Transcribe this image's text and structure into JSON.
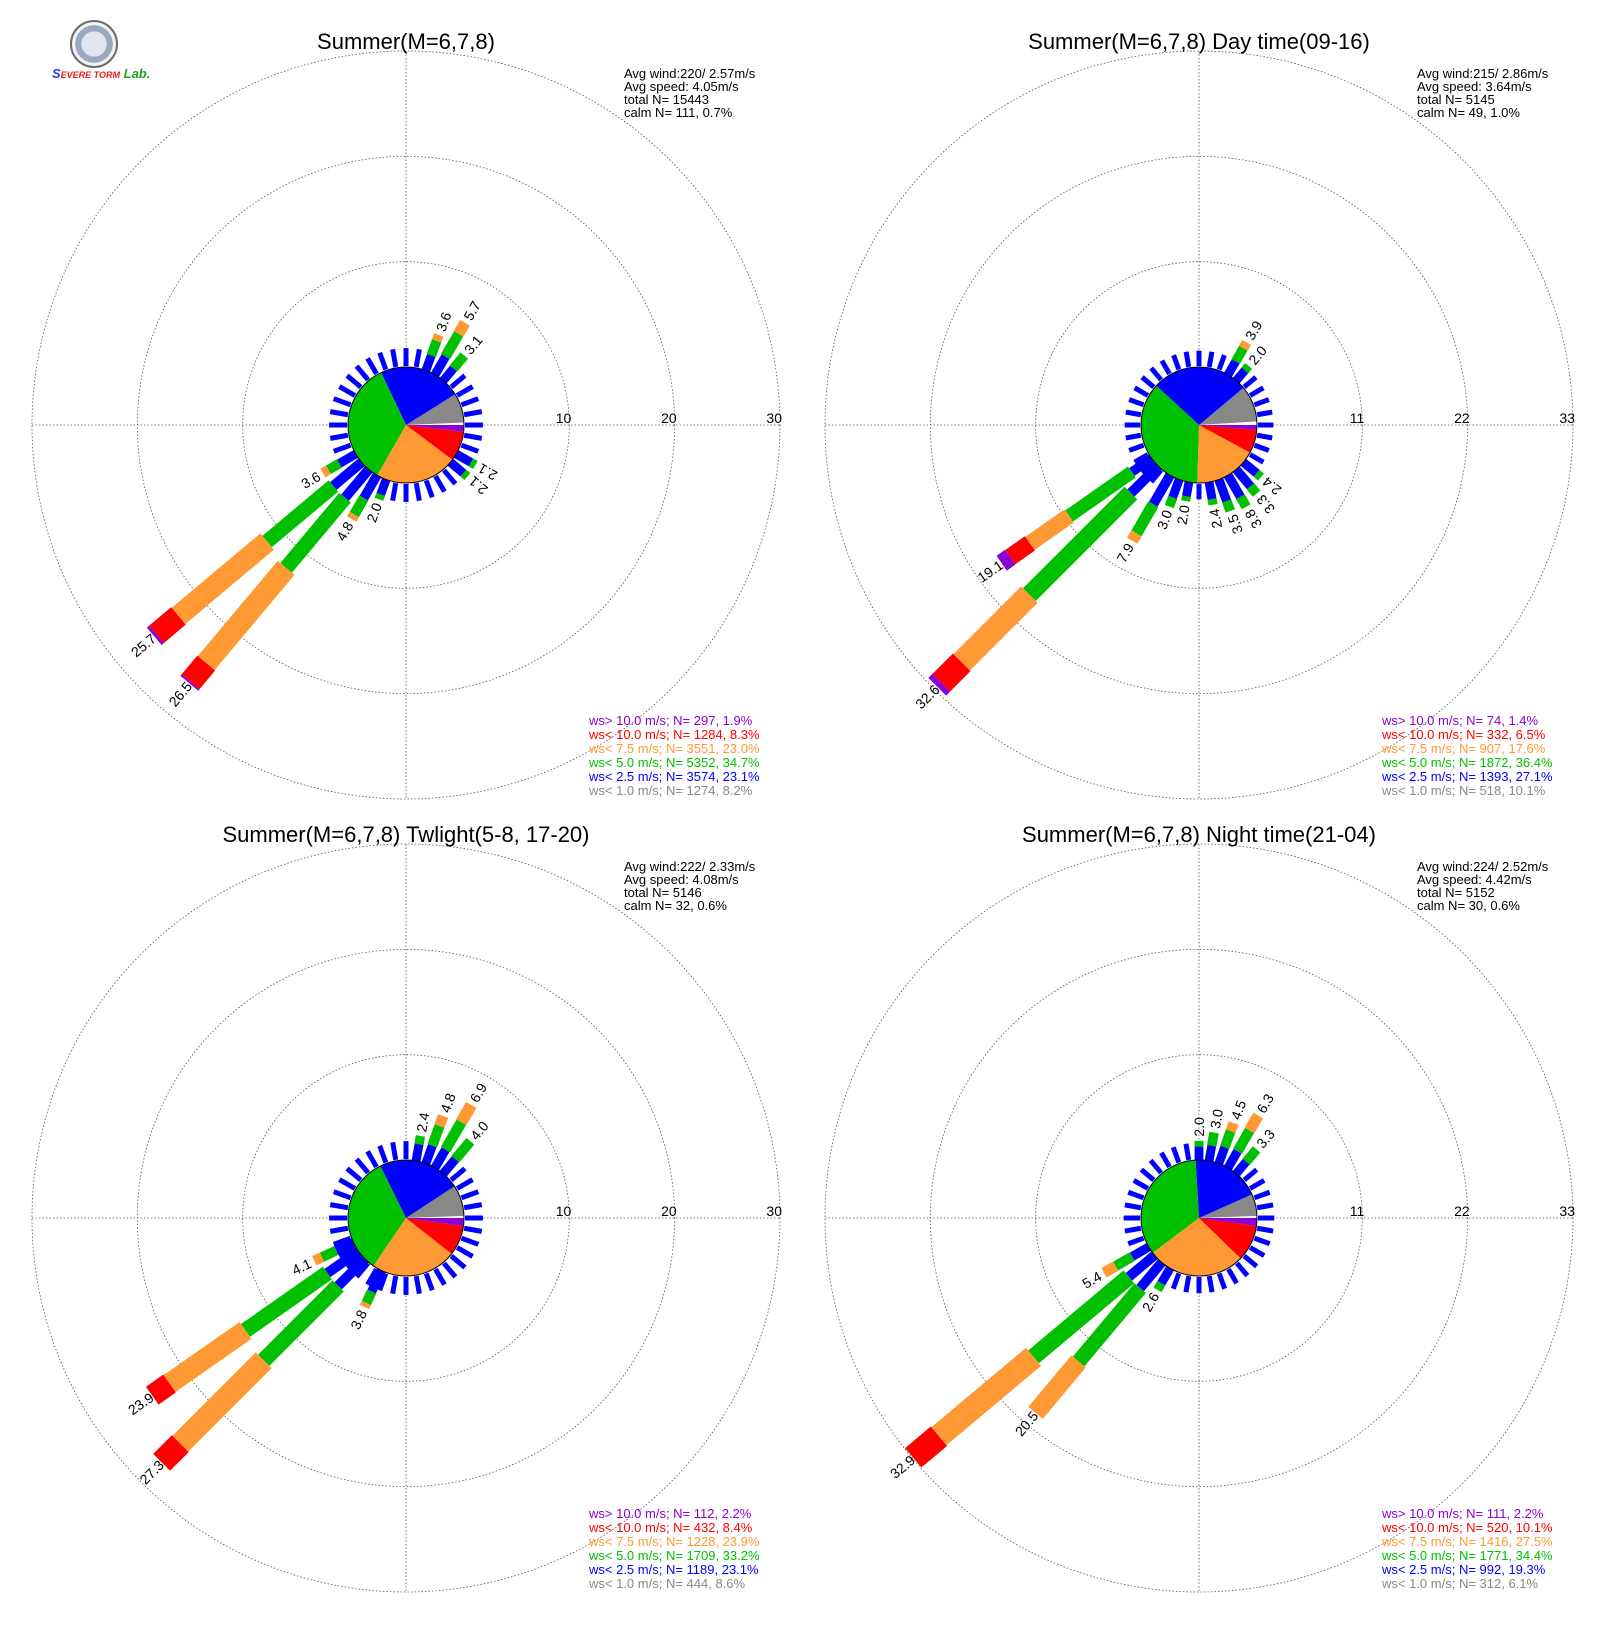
{
  "logo": {
    "text_1": "S",
    "text_2": "EVERE TORM",
    "text_3": "Lab."
  },
  "colors": {
    "calm": "#ffffff",
    "gt10": "#8b00d4",
    "lt10": "#ff0000",
    "lt7_5": "#ff9933",
    "lt5": "#00c000",
    "lt2_5": "#0000ff",
    "lt1": "#888888"
  },
  "chart_data": [
    {
      "type": "windrose",
      "title": "Summer(M=6,7,8)",
      "rings": [
        "10",
        "20",
        "30"
      ],
      "ring_max": 30,
      "stats": {
        "avg_wind": "Avg wind:220/ 2.57m/s",
        "avg_speed": "Avg speed: 4.05m/s",
        "total": "total N=      15443",
        "calm": "calm N=    111,   0.7%"
      },
      "legend": [
        {
          "key": "gt10",
          "text": "ws> 10.0 m/s; N=   297,  1.9%"
        },
        {
          "key": "lt10",
          "text": "ws< 10.0 m/s; N=  1284,  8.3%"
        },
        {
          "key": "lt7_5",
          "text": "ws<  7.5 m/s; N=  3551, 23.0%"
        },
        {
          "key": "lt5",
          "text": "ws<  5.0 m/s; N=  5352, 34.7%"
        },
        {
          "key": "lt2_5",
          "text": "ws<  2.5 m/s; N=  3574, 23.1%"
        },
        {
          "key": "lt1",
          "text": "ws<  1.0 m/s; N=  1274,  8.2%"
        }
      ],
      "pie": [
        0.7,
        8.2,
        23.1,
        34.7,
        23.0,
        8.3,
        1.9
      ],
      "bars": [
        {
          "dir": 220,
          "total": 26.5,
          "label": "26.5",
          "parts": [
            0,
            3.5,
            8.7,
            11.8,
            2.3
          ]
        },
        {
          "dir": 230,
          "total": 25.7,
          "label": "25.7",
          "parts": [
            0,
            3.5,
            8.2,
            11.0,
            2.7
          ]
        },
        {
          "dir": 210,
          "total": 4.8,
          "label": "4.8",
          "parts": [
            0,
            2.5,
            1.8,
            0.5,
            0
          ]
        },
        {
          "dir": 240,
          "total": 3.6,
          "label": "3.6",
          "parts": [
            0,
            1.8,
            1.2,
            0.6,
            0
          ]
        },
        {
          "dir": 200,
          "total": 2.0,
          "label": "2.0",
          "parts": [
            0,
            1.5,
            0.5,
            0,
            0
          ]
        },
        {
          "dir": 30,
          "total": 5.7,
          "label": "5.7",
          "parts": [
            0,
            2.0,
            2.5,
            1.2,
            0
          ]
        },
        {
          "dir": 20,
          "total": 3.6,
          "label": "3.6",
          "parts": [
            0,
            1.5,
            1.5,
            0.6,
            0
          ]
        },
        {
          "dir": 40,
          "total": 3.1,
          "label": "3.1",
          "parts": [
            0,
            1.5,
            1.6,
            0,
            0
          ]
        },
        {
          "dir": 120,
          "total": 2.1,
          "label": "2.1",
          "parts": [
            0,
            1.6,
            0.5,
            0,
            0
          ]
        },
        {
          "dir": 130,
          "total": 2.1,
          "label": "2.1",
          "parts": [
            0,
            1.6,
            0.5,
            0,
            0
          ]
        }
      ],
      "other_dirs_total": 1.7
    },
    {
      "type": "windrose",
      "title": "Summer(M=6,7,8) Day time(09-16)",
      "rings": [
        "11",
        "22",
        "33"
      ],
      "ring_max": 33,
      "stats": {
        "avg_wind": "Avg wind:215/ 2.86m/s",
        "avg_speed": "Avg speed: 3.64m/s",
        "total": "total N=       5145",
        "calm": "calm N=     49,   1.0%"
      },
      "legend": [
        {
          "key": "gt10",
          "text": "ws> 10.0 m/s; N=    74,  1.4%"
        },
        {
          "key": "lt10",
          "text": "ws< 10.0 m/s; N=   332,  6.5%"
        },
        {
          "key": "lt7_5",
          "text": "ws<  7.5 m/s; N=   907, 17.6%"
        },
        {
          "key": "lt5",
          "text": "ws<  5.0 m/s; N=  1872, 36.4%"
        },
        {
          "key": "lt2_5",
          "text": "ws<  2.5 m/s; N=  1393, 27.1%"
        },
        {
          "key": "lt1",
          "text": "ws<  1.0 m/s; N=   518, 10.1%"
        }
      ],
      "pie": [
        1.0,
        10.1,
        27.1,
        36.4,
        17.6,
        6.5,
        1.4
      ],
      "bars": [
        {
          "dir": 225,
          "total": 32.6,
          "label": "32.6",
          "parts": [
            0,
            4.0,
            15.0,
            10.0,
            3.0
          ]
        },
        {
          "dir": 235,
          "total": 19.1,
          "label": "19.1",
          "parts": [
            0,
            2.5,
            8.0,
            5.0,
            2.5
          ]
        },
        {
          "dir": 210,
          "total": 7.9,
          "label": "7.9",
          "parts": [
            0,
            3.5,
            3.5,
            0.9,
            0
          ]
        },
        {
          "dir": 200,
          "total": 3.0,
          "label": "3.0",
          "parts": [
            0,
            2.0,
            1.0,
            0,
            0
          ]
        },
        {
          "dir": 190,
          "total": 2.0,
          "label": "2.0",
          "parts": [
            0,
            1.5,
            0.5,
            0,
            0
          ]
        },
        {
          "dir": 170,
          "total": 2.4,
          "label": "2.4",
          "parts": [
            0,
            1.8,
            0.6,
            0,
            0
          ]
        },
        {
          "dir": 160,
          "total": 3.5,
          "label": "3.5",
          "parts": [
            0,
            2.4,
            1.1,
            0,
            0
          ]
        },
        {
          "dir": 150,
          "total": 3.8,
          "label": "3.8",
          "parts": [
            0,
            2.6,
            1.2,
            0,
            0
          ]
        },
        {
          "dir": 140,
          "total": 3.3,
          "label": "3.3",
          "parts": [
            0,
            2.3,
            1.0,
            0,
            0
          ]
        },
        {
          "dir": 130,
          "total": 2.4,
          "label": "2.4",
          "parts": [
            0,
            1.8,
            0.6,
            0,
            0
          ]
        },
        {
          "dir": 30,
          "total": 3.9,
          "label": "3.9",
          "parts": [
            0,
            1.6,
            1.6,
            0.7,
            0
          ]
        },
        {
          "dir": 40,
          "total": 2.0,
          "label": "2.0",
          "parts": [
            0,
            1.4,
            0.6,
            0,
            0
          ]
        }
      ],
      "other_dirs_total": 1.6
    },
    {
      "type": "windrose",
      "title": "Summer(M=6,7,8) Twlight(5-8, 17-20)",
      "rings": [
        "10",
        "20",
        "30"
      ],
      "ring_max": 30,
      "stats": {
        "avg_wind": "Avg wind:222/ 2.33m/s",
        "avg_speed": "Avg speed: 4.08m/s",
        "total": "total N=       5146",
        "calm": "calm N=     32,   0.6%"
      },
      "legend": [
        {
          "key": "gt10",
          "text": "ws> 10.0 m/s; N=   112,  2.2%"
        },
        {
          "key": "lt10",
          "text": "ws< 10.0 m/s; N=   432,  8.4%"
        },
        {
          "key": "lt7_5",
          "text": "ws<  7.5 m/s; N=  1228, 23.9%"
        },
        {
          "key": "lt5",
          "text": "ws<  5.0 m/s; N=  1709, 33.2%"
        },
        {
          "key": "lt2_5",
          "text": "ws<  2.5 m/s; N=  1189, 23.1%"
        },
        {
          "key": "lt1",
          "text": "ws<  1.0 m/s; N=   444,  8.6%"
        }
      ],
      "pie": [
        0.6,
        8.6,
        23.1,
        33.2,
        23.9,
        8.4,
        2.2
      ],
      "bars": [
        {
          "dir": 225,
          "total": 27.3,
          "label": "27.3",
          "parts": [
            0,
            3.6,
            10.0,
            11.2,
            2.5
          ]
        },
        {
          "dir": 235,
          "total": 23.9,
          "label": "23.9",
          "parts": [
            0,
            3.6,
            9.5,
            8.8,
            2.0
          ]
        },
        {
          "dir": 205,
          "total": 3.8,
          "label": "3.8",
          "parts": [
            0,
            2.2,
            1.2,
            0.4,
            0
          ]
        },
        {
          "dir": 245,
          "total": 4.1,
          "label": "4.1",
          "parts": [
            0,
            1.8,
            1.5,
            0.8,
            0
          ]
        },
        {
          "dir": 30,
          "total": 6.9,
          "label": "6.9",
          "parts": [
            0,
            2.0,
            3.0,
            1.9,
            0
          ]
        },
        {
          "dir": 20,
          "total": 4.8,
          "label": "4.8",
          "parts": [
            0,
            1.8,
            2.0,
            1.0,
            0
          ]
        },
        {
          "dir": 40,
          "total": 4.0,
          "label": "4.0",
          "parts": [
            0,
            1.8,
            2.2,
            0,
            0
          ]
        },
        {
          "dir": 10,
          "total": 2.4,
          "label": "2.4",
          "parts": [
            0,
            1.6,
            0.8,
            0,
            0
          ]
        }
      ],
      "other_dirs_total": 1.7
    },
    {
      "type": "windrose",
      "title": "Summer(M=6,7,8) Night time(21-04)",
      "rings": [
        "11",
        "22",
        "33"
      ],
      "ring_max": 33,
      "stats": {
        "avg_wind": "Avg wind:224/ 2.52m/s",
        "avg_speed": "Avg speed: 4.42m/s",
        "total": "total N=       5152",
        "calm": "calm N=     30,   0.6%"
      },
      "legend": [
        {
          "key": "gt10",
          "text": "ws> 10.0 m/s; N=   111,  2.2%"
        },
        {
          "key": "lt10",
          "text": "ws< 10.0 m/s; N=   520, 10.1%"
        },
        {
          "key": "lt7_5",
          "text": "ws<  7.5 m/s; N=  1416, 27.5%"
        },
        {
          "key": "lt5",
          "text": "ws<  5.0 m/s; N=  1771, 34.4%"
        },
        {
          "key": "lt2_5",
          "text": "ws<  2.5 m/s; N=   992, 19.3%"
        },
        {
          "key": "lt1",
          "text": "ws<  1.0 m/s; N=   312,  6.1%"
        }
      ],
      "pie": [
        0.6,
        6.1,
        19.3,
        34.4,
        27.5,
        10.1,
        2.2
      ],
      "bars": [
        {
          "dir": 230,
          "total": 32.9,
          "label": "32.9",
          "parts": [
            0,
            3.5,
            13.0,
            12.9,
            3.5
          ]
        },
        {
          "dir": 220,
          "total": 20.5,
          "label": "20.5",
          "parts": [
            0,
            3.5,
            10.0,
            7.0,
            0
          ]
        },
        {
          "dir": 210,
          "total": 2.6,
          "label": "2.6",
          "parts": [
            0,
            1.8,
            0.8,
            0,
            0
          ]
        },
        {
          "dir": 240,
          "total": 5.4,
          "label": "5.4",
          "parts": [
            0,
            2.0,
            2.0,
            1.4,
            0
          ]
        },
        {
          "dir": 30,
          "total": 6.3,
          "label": "6.3",
          "parts": [
            0,
            2.0,
            2.5,
            1.8,
            0
          ]
        },
        {
          "dir": 20,
          "total": 4.5,
          "label": "4.5",
          "parts": [
            0,
            1.8,
            1.8,
            0.9,
            0
          ]
        },
        {
          "dir": 10,
          "total": 3.0,
          "label": "3.0",
          "parts": [
            0,
            1.6,
            1.4,
            0,
            0
          ]
        },
        {
          "dir": 0,
          "total": 2.0,
          "label": "2.0",
          "parts": [
            0,
            1.4,
            0.6,
            0,
            0
          ]
        },
        {
          "dir": 40,
          "total": 3.3,
          "label": "3.3",
          "parts": [
            0,
            1.6,
            1.7,
            0,
            0
          ]
        }
      ],
      "other_dirs_total": 1.7
    }
  ]
}
